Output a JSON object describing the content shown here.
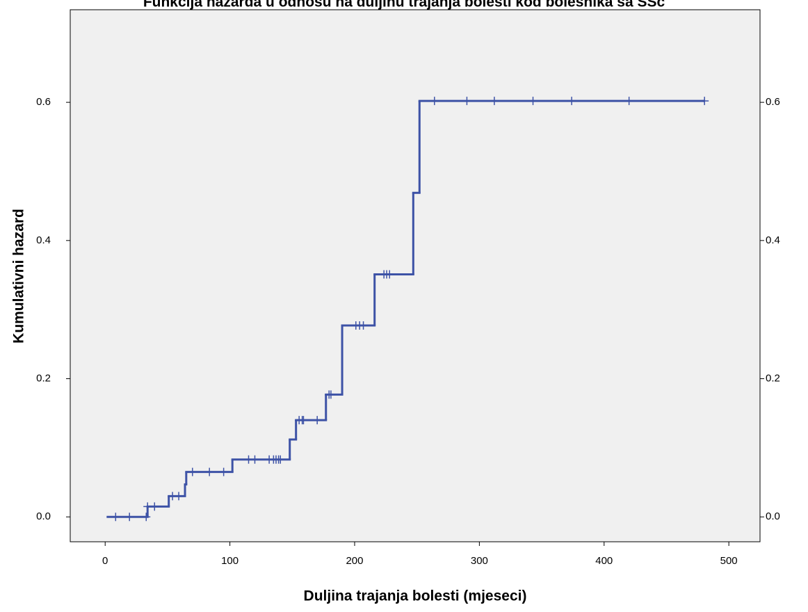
{
  "chart_data": {
    "type": "step",
    "title": "Funkcija hazarda u odnosu na duljinu trajanja bolesti kod bolesnika sa SSc",
    "x_label": "Duljina trajanja bolesti (mjeseci)",
    "y_label": "Kumulativni hazard",
    "xlim": [
      -28,
      525
    ],
    "ylim": [
      -0.036,
      0.734
    ],
    "xticks": [
      0,
      100,
      200,
      300,
      400,
      500
    ],
    "yticks": [
      {
        "value": 0,
        "label": "0.0"
      },
      0.2,
      0.4,
      0.6
    ],
    "color": "#3d52a6",
    "series": [
      {
        "x": [
          2,
          34,
          51,
          64,
          65,
          102,
          148,
          153,
          177,
          190,
          216,
          247,
          252,
          480
        ],
        "values": [
          0,
          0.015,
          0.03,
          0.047,
          0.065,
          0.083,
          0.112,
          0.14,
          0.177,
          0.277,
          0.351,
          0.469,
          0.602,
          0.602
        ]
      },
      {
        "marker": "+",
        "x": [
          8.4,
          19.5,
          32.9,
          34,
          39.6,
          54,
          59,
          70,
          83.6,
          95,
          115,
          120,
          131.5,
          135,
          137,
          139,
          140.5,
          155.5,
          158,
          159,
          170,
          179.5,
          181,
          201,
          204,
          207,
          223.5,
          225.7,
          228,
          264,
          290,
          312,
          343,
          374,
          420,
          480.5
        ],
        "values": [
          0,
          0,
          0,
          0.015,
          0.015,
          0.03,
          0.03,
          0.065,
          0.065,
          0.065,
          0.083,
          0.083,
          0.083,
          0.083,
          0.083,
          0.083,
          0.083,
          0.14,
          0.14,
          0.14,
          0.14,
          0.177,
          0.177,
          0.277,
          0.277,
          0.277,
          0.351,
          0.351,
          0.351,
          0.602,
          0.602,
          0.602,
          0.602,
          0.602,
          0.602,
          0.602
        ]
      }
    ]
  }
}
